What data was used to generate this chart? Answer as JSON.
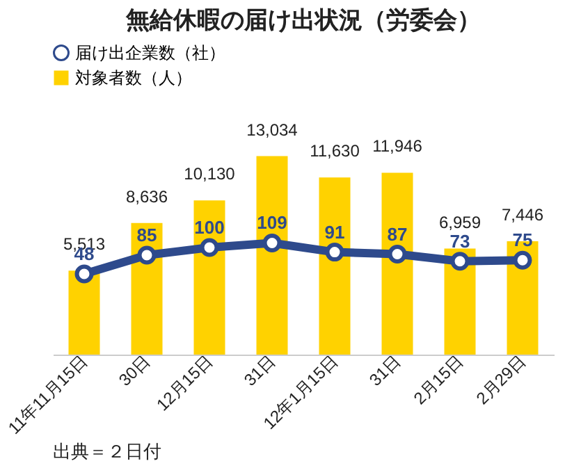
{
  "chart_data": {
    "type": "bar",
    "title": "無給休暇の届け出状況（労委会）",
    "categories": [
      "11年11月15日",
      "30日",
      "12月15日",
      "31日",
      "12年1月15日",
      "31日",
      "2月15日",
      "2月29日"
    ],
    "series": [
      {
        "name": "届け出企業数（社）",
        "type": "line",
        "axis": "y2",
        "color": "#2e4a8c",
        "values": [
          48,
          85,
          100,
          109,
          91,
          87,
          73,
          75
        ]
      },
      {
        "name": "対象者数（人）",
        "color": "#ffd200",
        "values": [
          5513,
          8636,
          10130,
          13034,
          11630,
          11946,
          6959,
          7446
        ],
        "value_labels": [
          "5,513",
          "8,636",
          "10,130",
          "13,034",
          "11,630",
          "11,946",
          "6,959",
          "7,446"
        ]
      }
    ],
    "tick_labels": "x",
    "data_labels": true,
    "marker": "circle",
    "legend": "top left",
    "annotations": [
      "出典＝２日付"
    ]
  }
}
